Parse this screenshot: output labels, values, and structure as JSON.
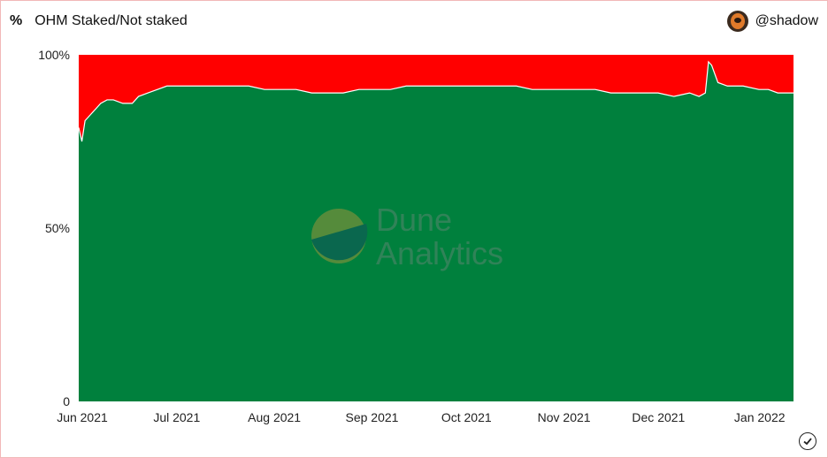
{
  "header": {
    "unit_label": "%",
    "title": "OHM Staked/Not staked"
  },
  "user": {
    "handle": "@shadow"
  },
  "watermark": {
    "line1": "Dune",
    "line2": "Analytics"
  },
  "chart_data": {
    "type": "area",
    "stacked": true,
    "stack_mode": "percent",
    "x_label_values": [
      "Jun 2021",
      "Jul 2021",
      "Aug 2021",
      "Sep 2021",
      "Oct 2021",
      "Nov 2021",
      "Dec 2021",
      "Jan 2022"
    ],
    "y_ticks": [
      "0",
      "50%",
      "100%"
    ],
    "ylim": [
      0,
      100
    ],
    "x": [
      "2021-06-01",
      "2021-06-02",
      "2021-06-03",
      "2021-06-05",
      "2021-06-08",
      "2021-06-10",
      "2021-06-12",
      "2021-06-15",
      "2021-06-18",
      "2021-06-20",
      "2021-06-23",
      "2021-06-26",
      "2021-06-29",
      "2021-07-01",
      "2021-07-05",
      "2021-07-10",
      "2021-07-15",
      "2021-07-20",
      "2021-07-25",
      "2021-07-30",
      "2021-08-04",
      "2021-08-09",
      "2021-08-14",
      "2021-08-19",
      "2021-08-24",
      "2021-08-29",
      "2021-09-03",
      "2021-09-08",
      "2021-09-13",
      "2021-09-18",
      "2021-09-23",
      "2021-09-28",
      "2021-10-03",
      "2021-10-08",
      "2021-10-13",
      "2021-10-18",
      "2021-10-23",
      "2021-10-28",
      "2021-11-02",
      "2021-11-07",
      "2021-11-12",
      "2021-11-17",
      "2021-11-22",
      "2021-11-27",
      "2021-12-02",
      "2021-12-07",
      "2021-12-12",
      "2021-12-15",
      "2021-12-17",
      "2021-12-18",
      "2021-12-19",
      "2021-12-21",
      "2021-12-24",
      "2021-12-29",
      "2022-01-03",
      "2022-01-06",
      "2022-01-09",
      "2022-01-12",
      "2022-01-14"
    ],
    "series": [
      {
        "color": "#00803d",
        "values": [
          79,
          75,
          81,
          83,
          86,
          87,
          87,
          86,
          86,
          88,
          89,
          90,
          91,
          91,
          91,
          91,
          91,
          91,
          91,
          90,
          90,
          90,
          89,
          89,
          89,
          90,
          90,
          90,
          91,
          91,
          91,
          91,
          91,
          91,
          91,
          91,
          90,
          90,
          90,
          90,
          90,
          89,
          89,
          89,
          89,
          88,
          89,
          88,
          89,
          98,
          97,
          92,
          91,
          91,
          90,
          90,
          89,
          89,
          89
        ]
      },
      {
        "color": "#ff0000",
        "values": [
          21,
          25,
          19,
          17,
          14,
          13,
          13,
          14,
          14,
          12,
          11,
          10,
          9,
          9,
          9,
          9,
          9,
          9,
          9,
          10,
          10,
          10,
          11,
          11,
          11,
          10,
          10,
          10,
          9,
          9,
          9,
          9,
          9,
          9,
          9,
          9,
          10,
          10,
          10,
          10,
          10,
          11,
          11,
          11,
          11,
          12,
          11,
          12,
          11,
          2,
          3,
          8,
          9,
          9,
          10,
          10,
          11,
          11,
          11
        ]
      }
    ]
  }
}
